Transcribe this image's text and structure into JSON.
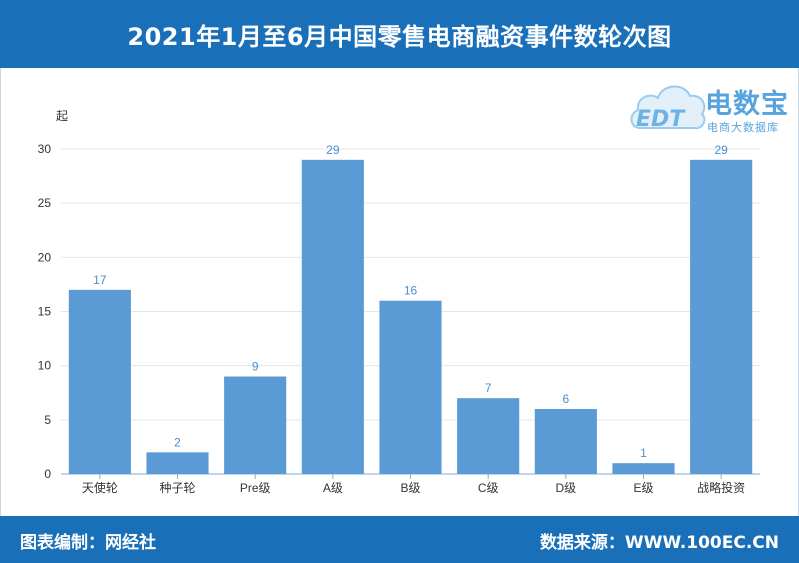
{
  "header": {
    "title": "2021年1月至6月中国零售电商融资事件数轮次图"
  },
  "logo": {
    "brand": "电数宝",
    "sub": "电商大数据库",
    "mark": "EDT"
  },
  "footer": {
    "credit": "图表编制：网经社",
    "source": "数据来源：WWW.100EC.CN"
  },
  "colors": {
    "bar": "#5b9bd5",
    "header": "#1a6fb9",
    "value_label": "#4a8fd0"
  },
  "chart_data": {
    "type": "bar",
    "title": "2021年1月至6月中国零售电商融资事件数轮次图",
    "ylabel": "起",
    "xlabel": "",
    "categories": [
      "天使轮",
      "种子轮",
      "Pre级",
      "A级",
      "B级",
      "C级",
      "D级",
      "E级",
      "战略投资"
    ],
    "values": [
      17,
      2,
      9,
      29,
      16,
      7,
      6,
      1,
      29
    ],
    "ylim": [
      0,
      30
    ],
    "yticks": [
      0,
      5,
      10,
      15,
      20,
      25,
      30
    ],
    "grid": true
  }
}
